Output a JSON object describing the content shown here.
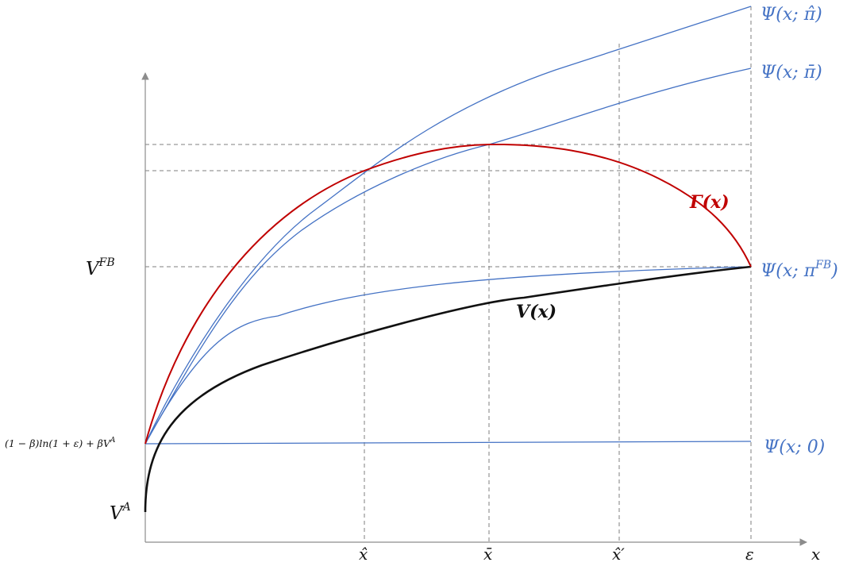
{
  "axes": {
    "x_label": "x",
    "x_ticks": [
      "x̂",
      "x̄",
      "x̂′",
      "ε"
    ],
    "y_ticks": [
      "V^FB",
      "(1 − β)ln(1 + ε) + βV^A",
      "V^A"
    ]
  },
  "y_tick_parts": {
    "vfb": {
      "base": "V",
      "sup": "FB"
    },
    "mid": {
      "text": "(1 − β)ln(1 + ε) + βV",
      "sup": "A"
    },
    "va": {
      "base": "V",
      "sup": "A"
    }
  },
  "curves": {
    "gamma": {
      "label": "Γ(x)",
      "color": "#c00000"
    },
    "V": {
      "label": "V(x)",
      "color": "#111111"
    },
    "psi_hat": {
      "label": "Ψ(x; π̂)",
      "color": "#4472c4"
    },
    "psi_bar": {
      "label": "Ψ(x; π̄)",
      "color": "#4472c4"
    },
    "psi_fb": {
      "label": "Ψ(x; π",
      "sup": "FB",
      "close": ")",
      "color": "#4472c4"
    },
    "psi_zero": {
      "label": "Ψ(x; 0)",
      "color": "#4472c4"
    }
  },
  "colors": {
    "axis": "#8c8c8c",
    "grid": "#7f7f7f",
    "accent_red": "#c00000",
    "accent_blue": "#4472c4"
  }
}
